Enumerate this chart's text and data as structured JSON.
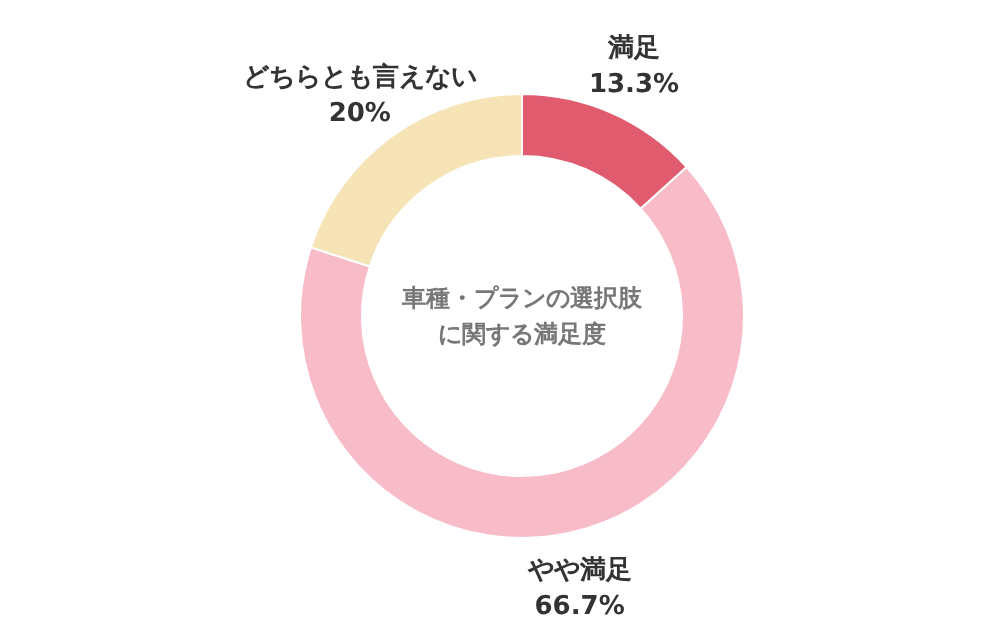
{
  "chart_data": {
    "type": "donut",
    "title": "車種・プランの選択肢",
    "subtitle": "に関する満足度",
    "categories": [
      "満足",
      "やや満足",
      "どちらとも言えない"
    ],
    "values": [
      13.3,
      66.7,
      20
    ],
    "value_labels": [
      "13.3%",
      "66.7%",
      "20%"
    ],
    "colors": [
      "#e15b6f",
      "#f8bcc8",
      "#f6e4b6"
    ]
  }
}
